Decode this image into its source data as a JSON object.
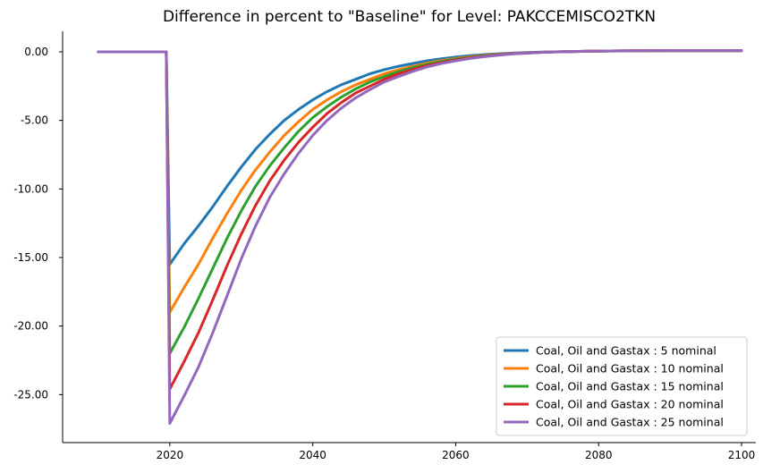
{
  "chart_data": {
    "type": "line",
    "title": "Difference in percent to \"Baseline\" for Level: PAKCCEMISCO2TKN",
    "xlabel": "",
    "ylabel": "",
    "xlim": [
      2005,
      2102
    ],
    "ylim": [
      -28.5,
      1.5
    ],
    "xticks": [
      2020,
      2040,
      2060,
      2080,
      2100
    ],
    "yticks": [
      0,
      -5,
      -10,
      -15,
      -20,
      -25
    ],
    "ytick_labels": [
      "0.00",
      "-5.00",
      "-10.00",
      "-15.00",
      "-20.00",
      "-25.00"
    ],
    "legend_position": "bottom-right",
    "grid": false,
    "x": [
      2010,
      2015,
      2019,
      2019.5,
      2020,
      2022,
      2024,
      2026,
      2028,
      2030,
      2032,
      2034,
      2036,
      2038,
      2040,
      2042,
      2044,
      2046,
      2048,
      2050,
      2052,
      2054,
      2056,
      2058,
      2060,
      2062,
      2064,
      2066,
      2068,
      2070,
      2072,
      2074,
      2076,
      2078,
      2080,
      2085,
      2090,
      2095,
      2100
    ],
    "series": [
      {
        "name": "Coal, Oil and Gastax : 5 nominal",
        "color": "#1f77b4",
        "values": [
          0,
          0,
          0,
          0,
          -15.5,
          -14.0,
          -12.7,
          -11.3,
          -9.8,
          -8.4,
          -7.1,
          -6.0,
          -5.0,
          -4.2,
          -3.5,
          -2.9,
          -2.4,
          -2.0,
          -1.6,
          -1.3,
          -1.05,
          -0.85,
          -0.65,
          -0.5,
          -0.38,
          -0.28,
          -0.2,
          -0.14,
          -0.09,
          -0.05,
          -0.02,
          0.0,
          0.02,
          0.04,
          0.05,
          0.07,
          0.08,
          0.08,
          0.08
        ]
      },
      {
        "name": "Coal, Oil and Gastax : 10 nominal",
        "color": "#ff7f0e",
        "values": [
          0,
          0,
          0,
          0,
          -19.0,
          -17.2,
          -15.5,
          -13.6,
          -11.8,
          -10.1,
          -8.6,
          -7.3,
          -6.1,
          -5.1,
          -4.2,
          -3.5,
          -2.9,
          -2.4,
          -2.0,
          -1.6,
          -1.3,
          -1.05,
          -0.82,
          -0.63,
          -0.48,
          -0.36,
          -0.26,
          -0.18,
          -0.12,
          -0.07,
          -0.03,
          0.0,
          0.02,
          0.04,
          0.06,
          0.08,
          0.09,
          0.09,
          0.09
        ]
      },
      {
        "name": "Coal, Oil and Gastax : 15 nominal",
        "color": "#2ca02c",
        "values": [
          0,
          0,
          0,
          0,
          -22.0,
          -20.1,
          -18.0,
          -15.8,
          -13.6,
          -11.6,
          -9.8,
          -8.3,
          -7.0,
          -5.8,
          -4.8,
          -4.0,
          -3.3,
          -2.7,
          -2.2,
          -1.8,
          -1.45,
          -1.15,
          -0.9,
          -0.7,
          -0.53,
          -0.4,
          -0.29,
          -0.2,
          -0.13,
          -0.08,
          -0.03,
          0.0,
          0.02,
          0.04,
          0.06,
          0.08,
          0.09,
          0.09,
          0.09
        ]
      },
      {
        "name": "Coal, Oil and Gastax : 20 nominal",
        "color": "#d62728",
        "values": [
          0,
          0,
          0,
          0,
          -24.6,
          -22.6,
          -20.5,
          -18.1,
          -15.6,
          -13.3,
          -11.2,
          -9.4,
          -7.9,
          -6.6,
          -5.5,
          -4.5,
          -3.7,
          -3.0,
          -2.5,
          -2.0,
          -1.6,
          -1.28,
          -1.0,
          -0.78,
          -0.59,
          -0.44,
          -0.32,
          -0.22,
          -0.14,
          -0.08,
          -0.03,
          0.0,
          0.02,
          0.04,
          0.06,
          0.08,
          0.09,
          0.09,
          0.09
        ]
      },
      {
        "name": "Coal, Oil and Gastax : 25 nominal",
        "color": "#9467bd",
        "values": [
          0,
          0,
          0,
          0,
          -27.1,
          -25.1,
          -23.0,
          -20.5,
          -17.8,
          -15.1,
          -12.7,
          -10.6,
          -8.9,
          -7.4,
          -6.1,
          -5.0,
          -4.1,
          -3.35,
          -2.75,
          -2.2,
          -1.8,
          -1.42,
          -1.1,
          -0.85,
          -0.65,
          -0.48,
          -0.35,
          -0.24,
          -0.15,
          -0.09,
          -0.04,
          0.0,
          0.02,
          0.04,
          0.06,
          0.08,
          0.09,
          0.09,
          0.09
        ]
      }
    ]
  }
}
